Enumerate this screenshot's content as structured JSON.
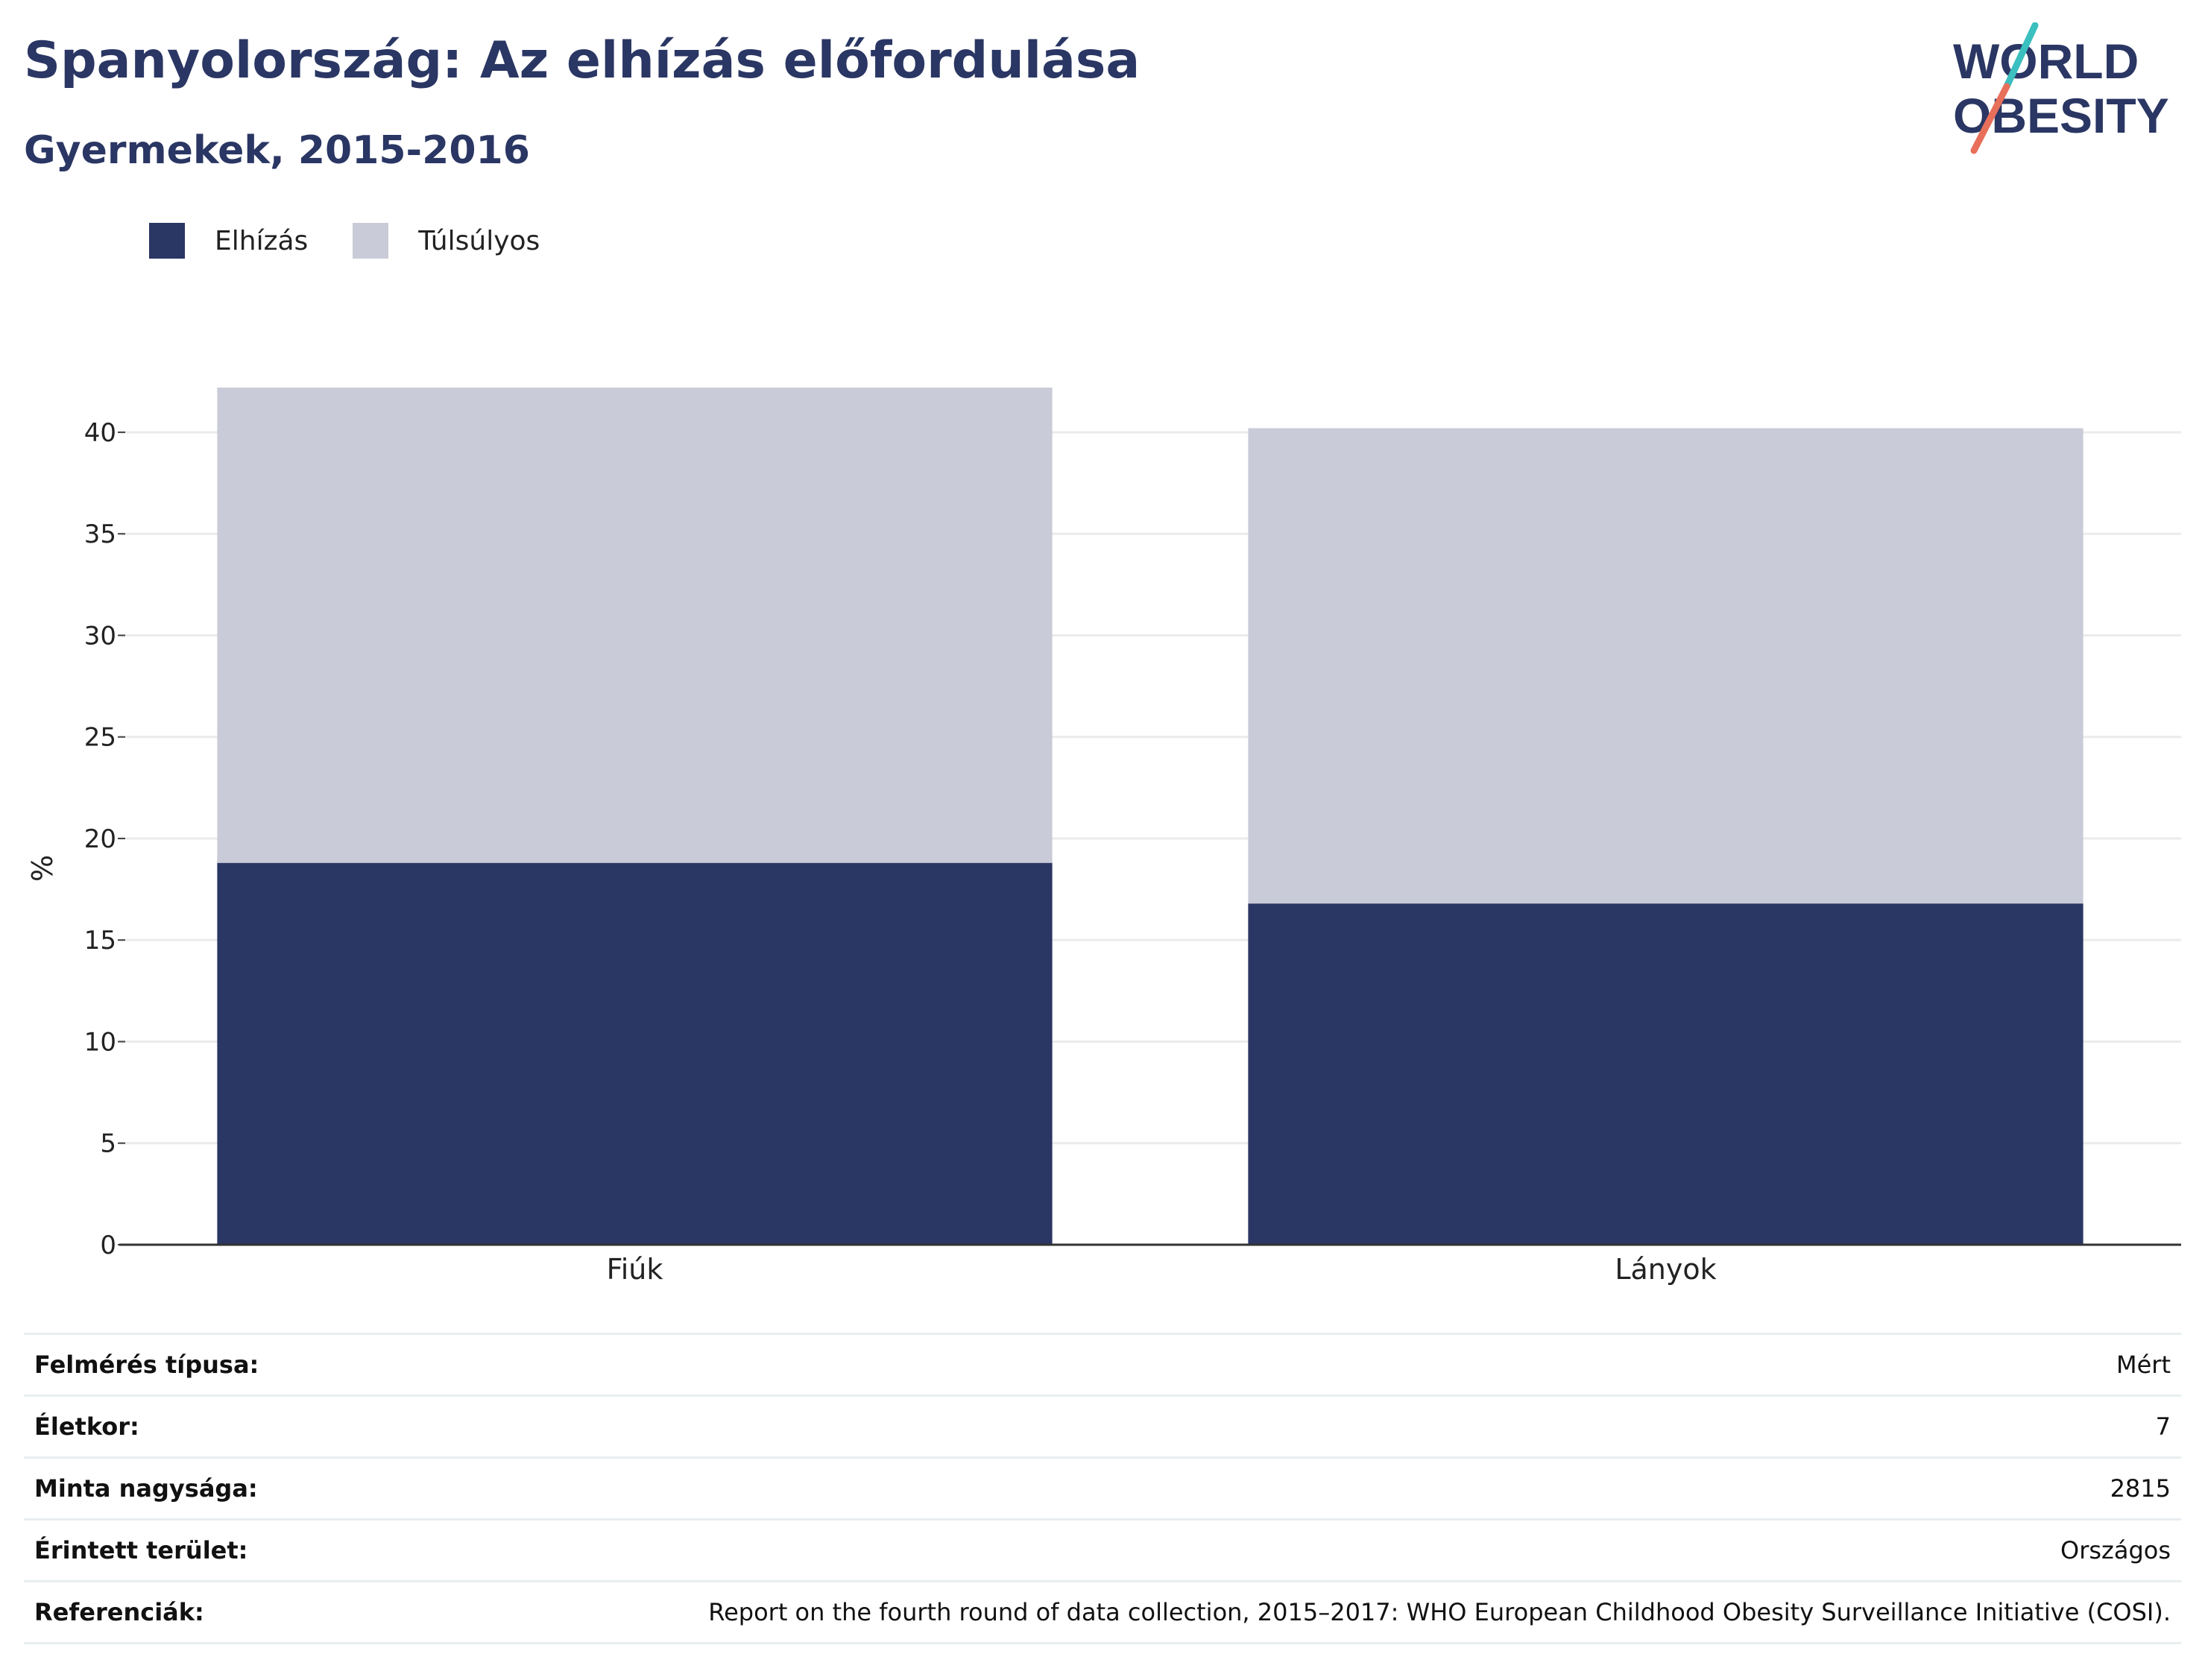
{
  "title": "Spanyolország: Az elhízás előfordulása",
  "subtitle": "Gyermekek, 2015-2016",
  "logo": {
    "line1": "WORLD",
    "line2": "OBESITY"
  },
  "colors": {
    "title": "#2a3663",
    "obesity": "#2a3663",
    "overweight": "#cacbd8",
    "logo_teal": "#3bbfbf",
    "logo_coral": "#e8705a"
  },
  "legend": [
    {
      "label": "Elhízás",
      "color": "#2a3663"
    },
    {
      "label": "Túlsúlyos",
      "color": "#cacbd8"
    }
  ],
  "chart_data": {
    "type": "bar",
    "stacked": true,
    "categories": [
      "Fiúk",
      "Lányok"
    ],
    "series": [
      {
        "name": "Elhízás",
        "values": [
          18.8,
          16.8
        ]
      },
      {
        "name": "Túlsúlyos",
        "values": [
          23.4,
          23.4
        ]
      }
    ],
    "ylabel": "%",
    "ylim": [
      0,
      42.2
    ],
    "yticks": [
      0,
      5,
      10,
      15,
      20,
      25,
      30,
      35,
      40
    ],
    "grid": true,
    "legend_position": "top-left"
  },
  "info": [
    {
      "key": "Felmérés típusa:",
      "value": "Mért"
    },
    {
      "key": "Életkor:",
      "value": "7"
    },
    {
      "key": "Minta nagysága:",
      "value": "2815"
    },
    {
      "key": "Érintett terület:",
      "value": "Országos"
    },
    {
      "key": "Referenciák:",
      "value": "Report on the fourth round of data collection, 2015–2017: WHO European Childhood Obesity Surveillance Initiative (COSI)."
    }
  ]
}
